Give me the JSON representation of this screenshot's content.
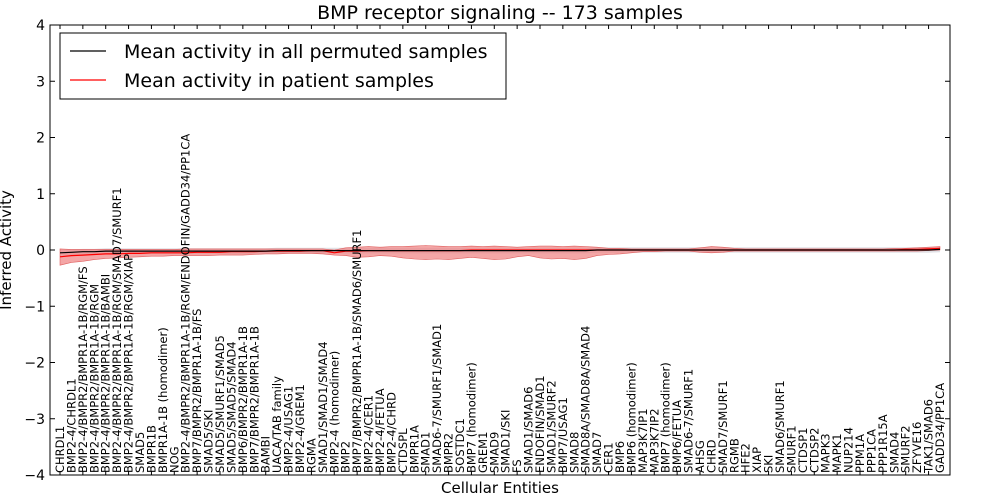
{
  "chart_data": {
    "type": "line",
    "title": "BMP receptor signaling -- 173 samples",
    "xlabel": "Cellular Entities",
    "ylabel": "Inferred Activity",
    "ylim": [
      -4,
      4
    ],
    "yticks": [
      4,
      3,
      2,
      1,
      0,
      -1,
      -2,
      -3,
      -4
    ],
    "legend": {
      "placement": "top-left",
      "entries": [
        {
          "label": "Mean activity in all permuted samples",
          "color": "#000000"
        },
        {
          "label": "Mean activity in patient samples",
          "color": "#ff0000"
        }
      ]
    },
    "colors": {
      "permuted_line": "#000000",
      "patient_line": "#ff0000",
      "patient_band": "#f08080",
      "permuted_band": "#c8c8d2"
    },
    "categories": [
      "CHRDL1",
      "BMP2-4/CHRDL1",
      "BMP2-4/BMPR2/BMPR1A-1B/RGM/FS",
      "BMP2-4/BMPR2/BMPR1A-1B/RGM",
      "BMP2-4/BMPR2/BMPR1A-1B/BAMBI",
      "BMP2-4/BMPR2/BMPR1A-1B/RGM/SMAD7/SMURF1",
      "BMP2-4/BMPR2/BMPR1A-1B/RGM/XIAP",
      "SMAD5",
      "BMPR1B",
      "BMPR1A-1B (homodimer)",
      "NOG",
      "BMP2-4/BMPR2/BMPR1A-1B/RGM/ENDOFIN/GADD34/PP1CA",
      "BMP7/BMPR2/BMPR1A-1B/FS",
      "SMAD5/SKI",
      "SMAD5/SMURF1/SMAD5",
      "SMAD5/SMAD5/SMAD4",
      "BMP6/BMPR2/BMPR1A-1B",
      "BMP7/BMPR2/BMPR1A-1B",
      "BAMBI",
      "UACA/TAB family",
      "BMP2-4/USAG1",
      "BMP2-4/GREM1",
      "RGMA",
      "SMAD1/SMAD1/SMAD4",
      "BMP2-4 (homodimer)",
      "BMP2",
      "BMP7/BMPR2/BMPR1A-1B/SMAD6/SMURF1",
      "BMP2-4/CER1",
      "BMP2-4/FETUA",
      "BMP2-4/CHRD",
      "CTDSPL",
      "BMPR1A",
      "SMAD1",
      "SMAD6-7/SMURF1/SMAD1",
      "BMPR2",
      "SOSTDC1",
      "BMP7 (homodimer)",
      "GREM1",
      "SMAD9",
      "SMAD1/SKI",
      "FS",
      "SMAD1/SMAD6",
      "ENDOFIN/SMAD1",
      "SMAD1/SMURF2",
      "BMP7/USAG1",
      "SMAD8",
      "SMAD8A/SMAD8A/SMAD4",
      "SMAD7",
      "CER1",
      "BMP6",
      "BMP6 (homodimer)",
      "MAP3K7IP1",
      "MAP3K7IP2",
      "BMP7 (homodimer)",
      "BMP6/FETUA",
      "SMAD6-7/SMURF1",
      "AHSG",
      "CHRD",
      "SMAD7/SMURF1",
      "RGMB",
      "HFE2",
      "XIAP",
      "SKI",
      "SMAD6/SMURF1",
      "SMURF1",
      "CTDSP1",
      "CTDSP2",
      "MAPK3",
      "MAPK1",
      "NUP214",
      "PPM1A",
      "PPP1CA",
      "PPP1R15A",
      "SMAD4",
      "SMURF2",
      "ZFYVE16",
      "TAK1/SMAD6",
      "GADD34/PP1CA"
    ],
    "series": [
      {
        "name": "Mean activity in all permuted samples",
        "values": [
          -0.05,
          -0.04,
          -0.03,
          -0.03,
          -0.02,
          -0.02,
          -0.02,
          -0.02,
          -0.02,
          -0.02,
          -0.02,
          -0.02,
          -0.02,
          -0.02,
          -0.02,
          -0.02,
          -0.02,
          -0.02,
          -0.02,
          -0.01,
          -0.01,
          -0.01,
          -0.01,
          -0.01,
          -0.01,
          -0.01,
          -0.01,
          -0.01,
          -0.01,
          -0.01,
          -0.01,
          -0.01,
          -0.01,
          -0.01,
          -0.01,
          -0.01,
          -0.01,
          -0.01,
          -0.01,
          -0.01,
          -0.01,
          -0.01,
          -0.01,
          -0.01,
          -0.01,
          -0.01,
          -0.01,
          0,
          0,
          0,
          0,
          0,
          0,
          0,
          0,
          0,
          0,
          0,
          0,
          0,
          0,
          0,
          0,
          0,
          0,
          0,
          0,
          0,
          0,
          0,
          0,
          0,
          0,
          0,
          0,
          0,
          0,
          0.01
        ]
      },
      {
        "name": "Mean activity in patient samples",
        "values": [
          -0.12,
          -0.1,
          -0.09,
          -0.08,
          -0.07,
          -0.07,
          -0.06,
          -0.06,
          -0.05,
          -0.05,
          -0.05,
          -0.05,
          -0.04,
          -0.04,
          -0.04,
          -0.03,
          -0.03,
          -0.03,
          -0.02,
          -0.02,
          -0.02,
          -0.02,
          -0.01,
          -0.01,
          -0.05,
          -0.02,
          -0.02,
          -0.01,
          -0.01,
          -0.01,
          -0.01,
          -0.01,
          -0.01,
          -0.01,
          -0.01,
          -0.01,
          0,
          0,
          0,
          0,
          0,
          0,
          0,
          0,
          0,
          0,
          0,
          0,
          0,
          0,
          0,
          0,
          0,
          0,
          0,
          0,
          0,
          0,
          0,
          0,
          0,
          0,
          0,
          0,
          0,
          0,
          0,
          0,
          0,
          0,
          0,
          0,
          0,
          0,
          0.01,
          0.01,
          0.02,
          0.03
        ],
        "lower": [
          -0.27,
          -0.22,
          -0.2,
          -0.17,
          -0.15,
          -0.14,
          -0.13,
          -0.12,
          -0.11,
          -0.11,
          -0.1,
          -0.1,
          -0.1,
          -0.1,
          -0.09,
          -0.09,
          -0.09,
          -0.08,
          -0.07,
          -0.07,
          -0.06,
          -0.06,
          -0.06,
          -0.07,
          -0.09,
          -0.1,
          -0.13,
          -0.12,
          -0.1,
          -0.11,
          -0.14,
          -0.16,
          -0.17,
          -0.16,
          -0.17,
          -0.15,
          -0.13,
          -0.15,
          -0.17,
          -0.16,
          -0.12,
          -0.1,
          -0.14,
          -0.16,
          -0.15,
          -0.17,
          -0.15,
          -0.1,
          -0.08,
          -0.07,
          -0.05,
          -0.03,
          -0.03,
          -0.02,
          -0.02,
          -0.02,
          -0.04,
          -0.05,
          -0.04,
          -0.02,
          -0.02,
          -0.02,
          -0.02,
          -0.02,
          -0.02,
          -0.02,
          -0.02,
          -0.02,
          -0.02,
          -0.02,
          -0.02,
          -0.02,
          -0.02,
          -0.02,
          -0.02,
          -0.02,
          -0.01,
          0.0
        ],
        "upper": [
          0.02,
          0.01,
          0.01,
          0.01,
          0.01,
          0.01,
          0.01,
          0.01,
          0.01,
          0.01,
          0.01,
          0.02,
          0.02,
          0.02,
          0.02,
          0.02,
          0.02,
          0.02,
          0.02,
          0.02,
          0.02,
          0.02,
          0.02,
          0.02,
          0.0,
          0.04,
          0.05,
          0.06,
          0.05,
          0.06,
          0.06,
          0.07,
          0.08,
          0.07,
          0.06,
          0.06,
          0.07,
          0.06,
          0.07,
          0.06,
          0.05,
          0.06,
          0.07,
          0.07,
          0.06,
          0.07,
          0.06,
          0.05,
          0.03,
          0.03,
          0.02,
          0.02,
          0.02,
          0.02,
          0.02,
          0.02,
          0.04,
          0.06,
          0.05,
          0.03,
          0.02,
          0.02,
          0.02,
          0.02,
          0.02,
          0.02,
          0.02,
          0.02,
          0.02,
          0.02,
          0.02,
          0.02,
          0.02,
          0.03,
          0.03,
          0.04,
          0.05,
          0.06
        ]
      }
    ]
  }
}
